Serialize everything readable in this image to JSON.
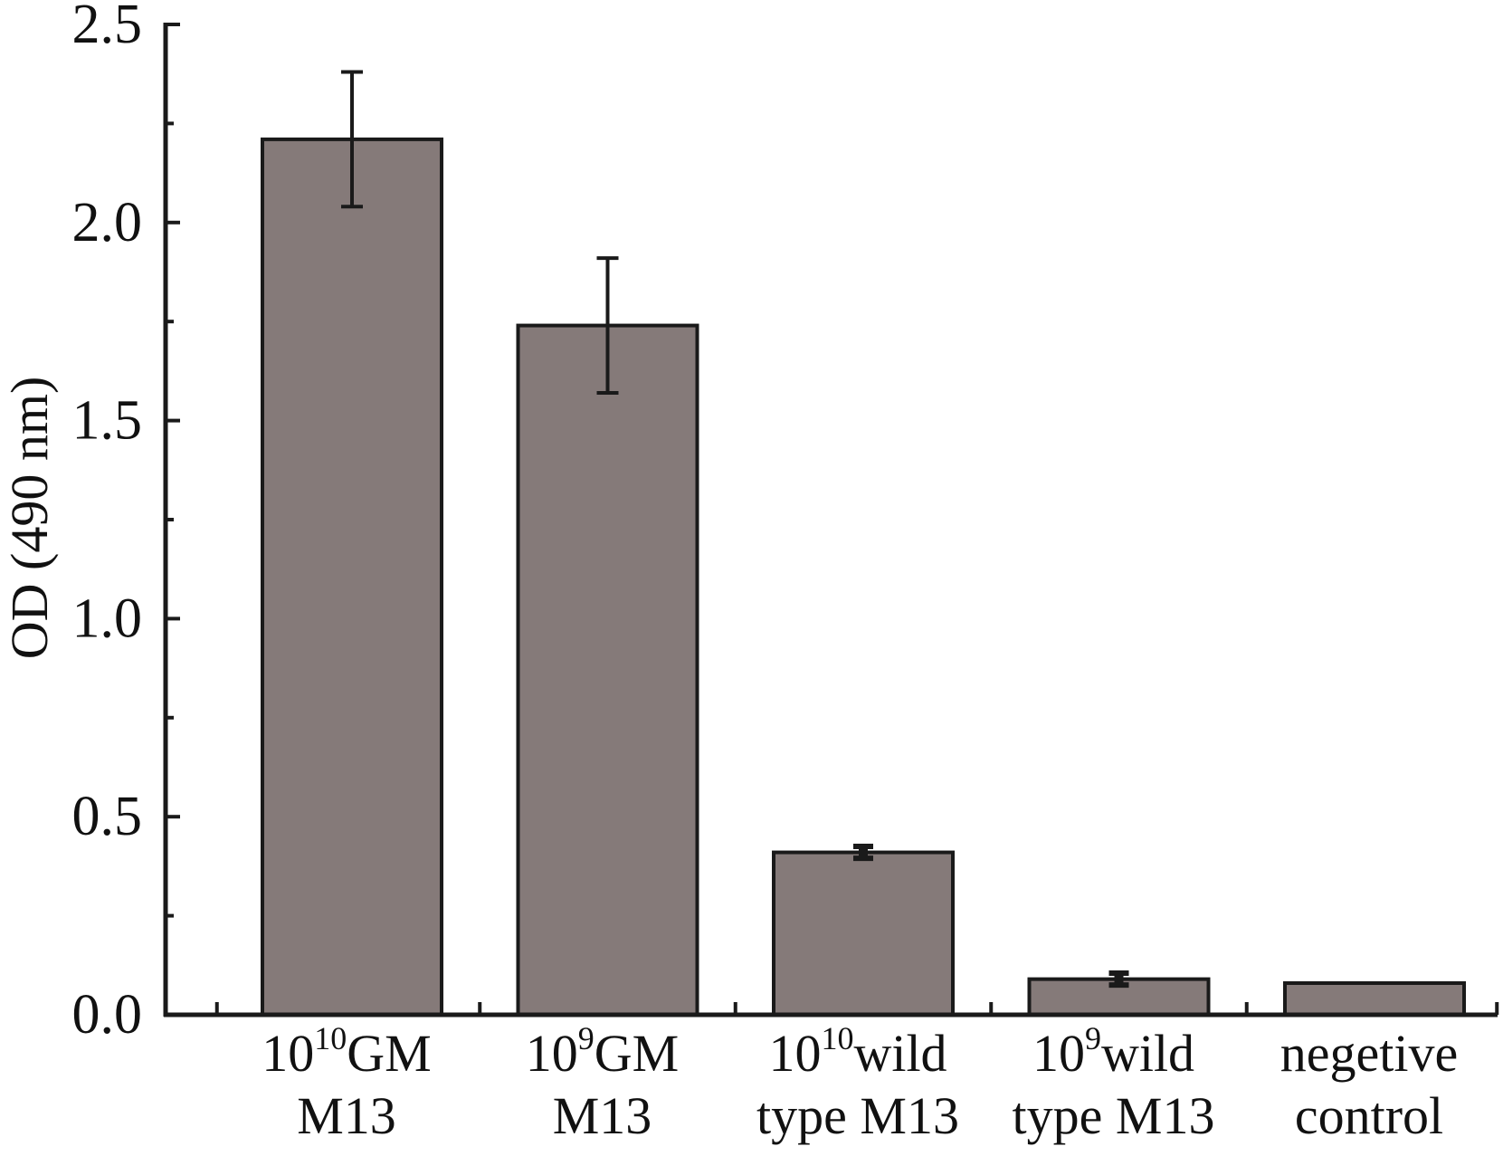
{
  "chart_data": {
    "type": "bar",
    "title": "",
    "xlabel": "",
    "ylabel": "OD (490 nm)",
    "ylim": [
      0,
      2.5
    ],
    "yticks": [
      "0.0",
      "0.5",
      "1.0",
      "1.5",
      "2.0",
      "2.5"
    ],
    "yticks_values": [
      0,
      0.5,
      1.0,
      1.5,
      2.0,
      2.5
    ],
    "minor_ticks": true,
    "grid": false,
    "legend": "none",
    "categories": [
      {
        "base": "10",
        "sup": "10",
        "tail": "GM",
        "line2": "M13"
      },
      {
        "base": "10",
        "sup": "9",
        "tail": "GM",
        "line2": "M13"
      },
      {
        "base": "10",
        "sup": "10",
        "tail": "wild",
        "line2": "type M13"
      },
      {
        "base": "10",
        "sup": "9",
        "tail": "wild",
        "line2": "type M13"
      },
      {
        "base": "negetive",
        "sup": "",
        "tail": "",
        "line2": "control"
      }
    ],
    "values": [
      2.21,
      1.74,
      0.41,
      0.09,
      0.08
    ],
    "errors": [
      0.17,
      0.17,
      0.015,
      0.015,
      0.0
    ],
    "bar_color": "#857a79",
    "edge_color": "#1a1a1a"
  }
}
